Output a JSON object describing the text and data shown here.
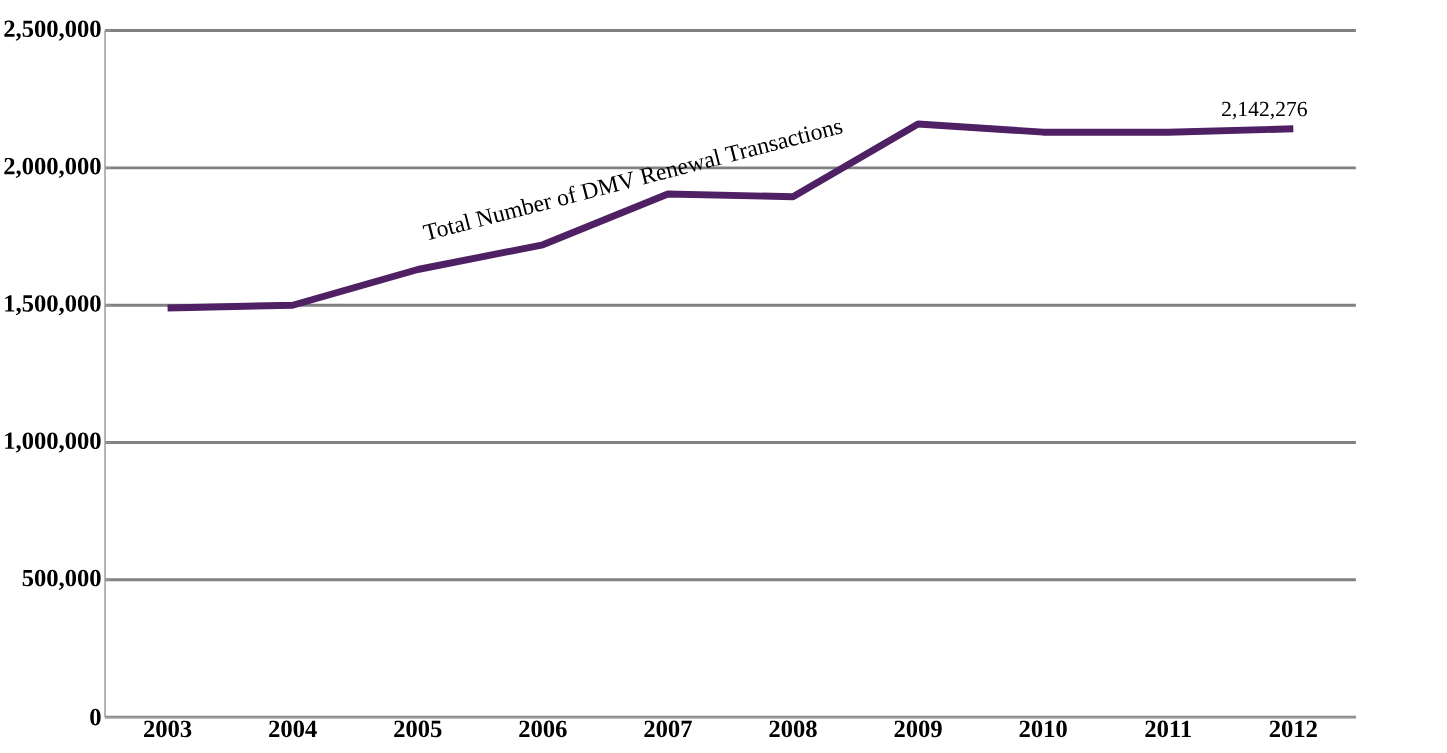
{
  "chart_data": {
    "type": "line",
    "categories": [
      "2003",
      "2004",
      "2005",
      "2006",
      "2007",
      "2008",
      "2009",
      "2010",
      "2011",
      "2012"
    ],
    "series": [
      {
        "name": "Total Number of DMV Renewal Transactions",
        "color": "#4f2064",
        "values": [
          1490000,
          1500000,
          1630000,
          1720000,
          1905000,
          1895000,
          2160000,
          2130000,
          2130000,
          2142276
        ],
        "value_labels": [
          null,
          null,
          null,
          null,
          null,
          null,
          null,
          null,
          null,
          "2,142,276"
        ]
      }
    ],
    "ylim": [
      0,
      2500000
    ],
    "yticks": [
      {
        "value": 0,
        "label": "0"
      },
      {
        "value": 500000,
        "label": "500,000"
      },
      {
        "value": 1000000,
        "label": "1,000,000"
      },
      {
        "value": 1500000,
        "label": "1,500,000"
      },
      {
        "value": 2000000,
        "label": "2,000,000"
      },
      {
        "value": 2500000,
        "label": "2,500,000"
      }
    ],
    "grid": "y",
    "legend": false,
    "marker": "none",
    "line_style": "solid"
  }
}
